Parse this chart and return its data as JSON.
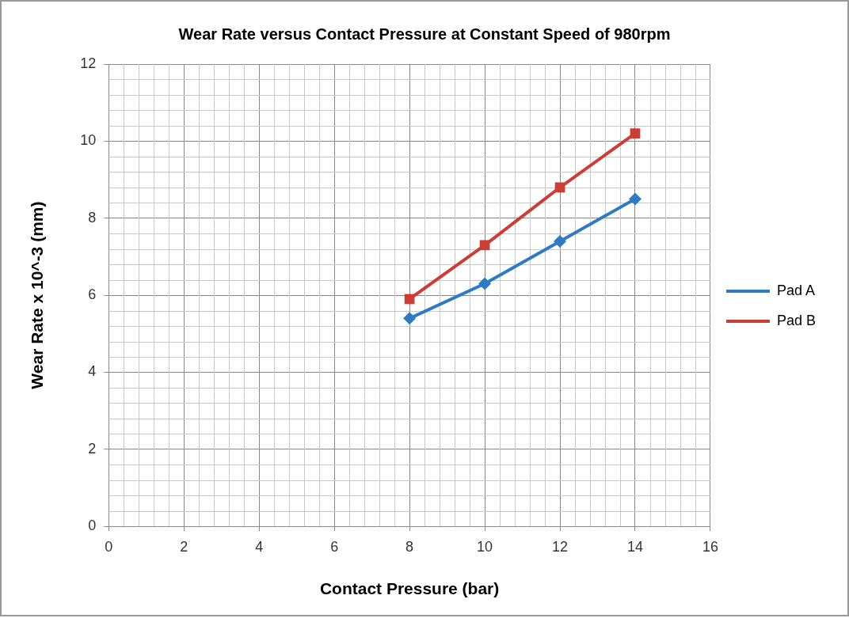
{
  "chart_data": {
    "type": "line",
    "title": "Wear Rate versus Contact Pressure at Constant Speed of 980rpm",
    "xlabel": "Contact Pressure (bar)",
    "ylabel": "Wear Rate x 10^-3 (mm)",
    "x": [
      8,
      10,
      12,
      14
    ],
    "series": [
      {
        "name": "Pad A",
        "color": "#2e7bc4",
        "values": [
          5.4,
          6.3,
          7.4,
          8.5
        ],
        "marker": "diamond"
      },
      {
        "name": "Pad B",
        "color": "#cc3d35",
        "values": [
          5.9,
          7.3,
          8.8,
          10.2
        ],
        "marker": "square"
      }
    ],
    "xlim": [
      0,
      16
    ],
    "xticks": [
      0,
      2,
      4,
      6,
      8,
      10,
      12,
      14,
      16
    ],
    "ylim": [
      0,
      12
    ],
    "yticks": [
      0,
      2,
      4,
      6,
      8,
      10,
      12
    ],
    "grid": true,
    "legend": "right",
    "line_style": "solid"
  }
}
